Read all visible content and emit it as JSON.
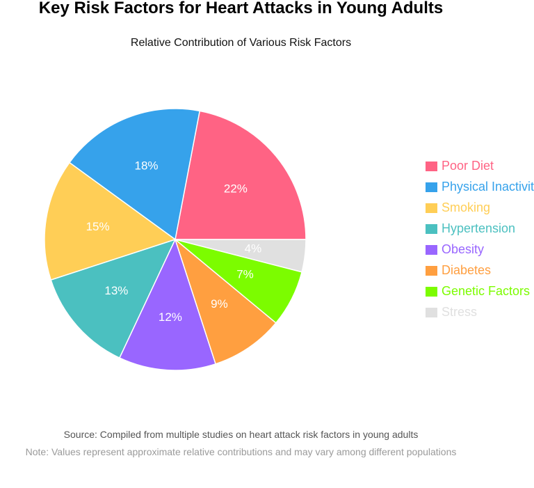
{
  "chart_data": {
    "type": "pie",
    "title": "Key Risk Factors for Heart Attacks in Young Adults",
    "subtitle": "Relative Contribution of Various Risk Factors",
    "categories": [
      "Poor Diet",
      "Physical Inactivity",
      "Smoking",
      "Hypertension",
      "Obesity",
      "Diabetes",
      "Genetic Factors",
      "Stress"
    ],
    "values": [
      22,
      18,
      15,
      13,
      12,
      9,
      7,
      4
    ],
    "data_labels": [
      "22%",
      "18%",
      "15%",
      "13%",
      "12%",
      "9%",
      "7%",
      "4%"
    ],
    "colors": [
      "#ff6384",
      "#36a2eb",
      "#ffce56",
      "#4bc0c0",
      "#9966ff",
      "#ff9f40",
      "#7cfc00",
      "#e0e0e0"
    ],
    "legend_position": "right",
    "start_angle": "3 o'clock",
    "direction": "counterclockwise"
  },
  "footer": {
    "source": "Source: Compiled from multiple studies on heart attack risk factors in young adults",
    "note": "Note: Values represent approximate relative contributions and may vary among different populations"
  }
}
